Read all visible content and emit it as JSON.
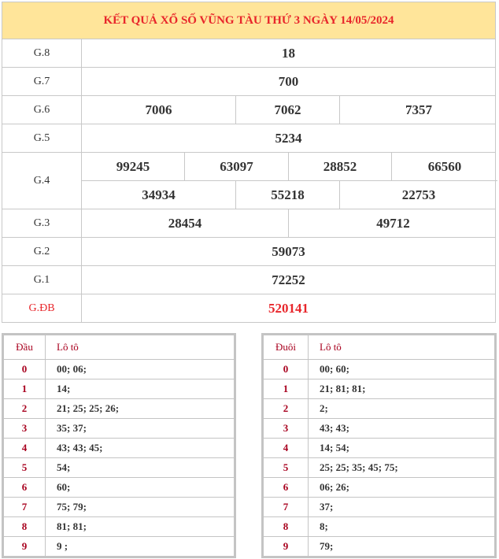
{
  "title": "KẾT QUẢ XỔ SỐ VŨNG TÀU THỨ 3 NGÀY 14/05/2024",
  "prizes": [
    {
      "label": "G.8",
      "rows": [
        [
          "18"
        ]
      ]
    },
    {
      "label": "G.7",
      "rows": [
        [
          "700"
        ]
      ]
    },
    {
      "label": "G.6",
      "rows": [
        [
          "7006",
          "7062",
          "7357"
        ]
      ]
    },
    {
      "label": "G.5",
      "rows": [
        [
          "5234"
        ]
      ]
    },
    {
      "label": "G.4",
      "rows": [
        [
          "99245",
          "63097",
          "28852",
          "66560"
        ],
        [
          "34934",
          "55218",
          "22753"
        ]
      ]
    },
    {
      "label": "G.3",
      "rows": [
        [
          "28454",
          "49712"
        ]
      ]
    },
    {
      "label": "G.2",
      "rows": [
        [
          "59073"
        ]
      ]
    },
    {
      "label": "G.1",
      "rows": [
        [
          "72252"
        ]
      ]
    },
    {
      "label": "G.ĐB",
      "rows": [
        [
          "520141"
        ]
      ],
      "special": true
    }
  ],
  "dau": {
    "key_header": "Đầu",
    "val_header": "Lô tô",
    "rows": [
      [
        "0",
        "00; 06;"
      ],
      [
        "1",
        "14;"
      ],
      [
        "2",
        "21; 25; 25; 26;"
      ],
      [
        "3",
        "35; 37;"
      ],
      [
        "4",
        "43; 43; 45;"
      ],
      [
        "5",
        "54;"
      ],
      [
        "6",
        "60;"
      ],
      [
        "7",
        "75; 79;"
      ],
      [
        "8",
        "81; 81;"
      ],
      [
        "9",
        "9 ;"
      ]
    ]
  },
  "duoi": {
    "key_header": "Đuôi",
    "val_header": "Lô tô",
    "rows": [
      [
        "0",
        "00; 60;"
      ],
      [
        "1",
        "21; 81; 81;"
      ],
      [
        "2",
        " 2;"
      ],
      [
        "3",
        "43; 43;"
      ],
      [
        "4",
        "14; 54;"
      ],
      [
        "5",
        "25; 25; 35; 45; 75;"
      ],
      [
        "6",
        "06; 26;"
      ],
      [
        "7",
        "37;"
      ],
      [
        "8",
        " 8;"
      ],
      [
        "9",
        "79;"
      ]
    ]
  },
  "colors": {
    "header_bg": "#ffe59a",
    "title": "#e8262b",
    "key": "#a8001e"
  }
}
